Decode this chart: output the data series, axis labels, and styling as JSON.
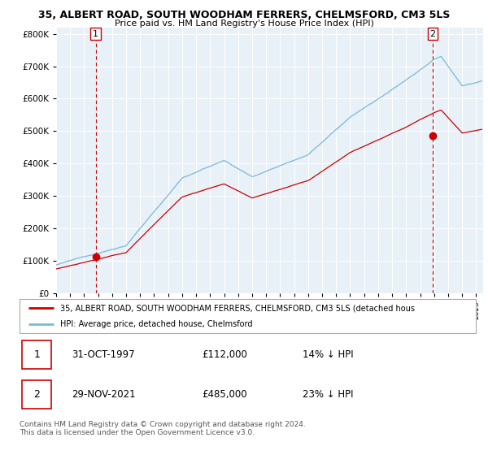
{
  "title": "35, ALBERT ROAD, SOUTH WOODHAM FERRERS, CHELMSFORD, CM3 5LS",
  "subtitle": "Price paid vs. HM Land Registry's House Price Index (HPI)",
  "ylim": [
    0,
    800000
  ],
  "yticks": [
    0,
    100000,
    200000,
    300000,
    400000,
    500000,
    600000,
    700000,
    800000
  ],
  "ytick_labels": [
    "£0",
    "£100K",
    "£200K",
    "£300K",
    "£400K",
    "£500K",
    "£600K",
    "£700K",
    "£800K"
  ],
  "hpi_color": "#7ab8d8",
  "price_color": "#cc0000",
  "marker_color": "#cc0000",
  "dashed_color": "#cc0000",
  "background_color": "#ffffff",
  "chart_bg_color": "#e8f0f8",
  "legend_label_price": "35, ALBERT ROAD, SOUTH WOODHAM FERRERS, CHELMSFORD, CM3 5LS (detached hous",
  "legend_label_hpi": "HPI: Average price, detached house, Chelmsford",
  "transaction1_date": "31-OCT-1997",
  "transaction1_price": "£112,000",
  "transaction1_hpi": "14% ↓ HPI",
  "transaction2_date": "29-NOV-2021",
  "transaction2_price": "£485,000",
  "transaction2_hpi": "23% ↓ HPI",
  "footer": "Contains HM Land Registry data © Crown copyright and database right 2024.\nThis data is licensed under the Open Government Licence v3.0.",
  "transaction1_year": 1997.83,
  "transaction1_value": 112000,
  "transaction2_year": 2021.9,
  "transaction2_value": 485000,
  "xmin": 1995,
  "xmax": 2025.5
}
